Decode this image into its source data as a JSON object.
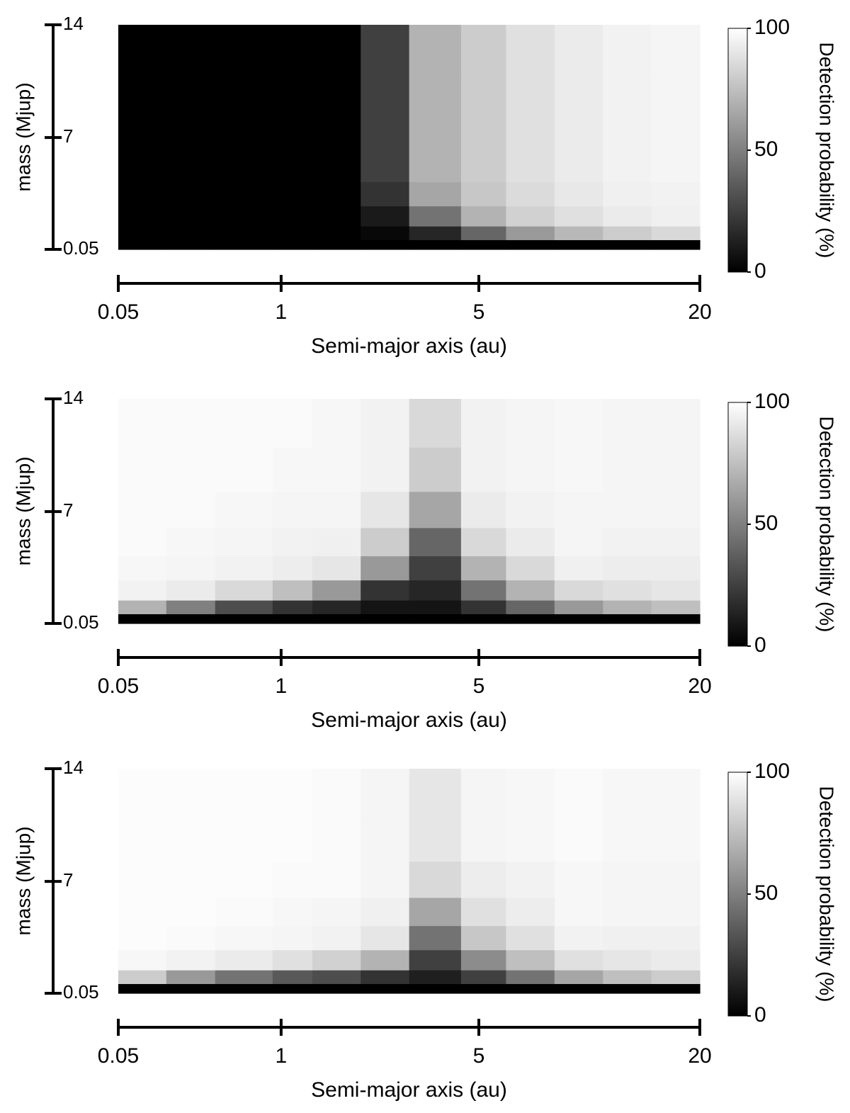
{
  "chart_data": [
    {
      "type": "heatmap",
      "colormap": "gray",
      "x_label": "Semi-major axis (au)",
      "y_label": "mass (Mjup)",
      "colorbar_label": "Detection probability (%)",
      "x": [
        0.19,
        0.47,
        0.76,
        1.14,
        2.12,
        3.1,
        4.08,
        5.2,
        8.49,
        11.78,
        15.07,
        18.36
      ],
      "y": [
        0.3,
        1,
        2,
        3.5,
        5,
        7,
        9.5,
        12.5
      ],
      "xlim": [
        0.05,
        20
      ],
      "xticks": [
        0.05,
        1,
        5,
        20
      ],
      "ylim": [
        0.05,
        14
      ],
      "yticks": [
        0.05,
        7,
        14
      ],
      "clim": [
        0,
        100
      ],
      "cticks": [
        0,
        50,
        100
      ],
      "values": [
        [
          0,
          0,
          0,
          0,
          0,
          0,
          0,
          0,
          0,
          0,
          0,
          0
        ],
        [
          0,
          0,
          0,
          0,
          0,
          3,
          15,
          40,
          60,
          72,
          80,
          85
        ],
        [
          0,
          0,
          0,
          0,
          0,
          10,
          45,
          70,
          82,
          88,
          92,
          94
        ],
        [
          0,
          0,
          0,
          0,
          0,
          20,
          65,
          78,
          86,
          91,
          94,
          95
        ],
        [
          0,
          0,
          0,
          0,
          0,
          25,
          70,
          80,
          88,
          92,
          95,
          96
        ],
        [
          0,
          0,
          0,
          0,
          0,
          25,
          70,
          80,
          88,
          92,
          95,
          96
        ],
        [
          0,
          0,
          0,
          0,
          0,
          25,
          70,
          80,
          88,
          92,
          95,
          96
        ],
        [
          0,
          0,
          0,
          0,
          0,
          25,
          70,
          80,
          88,
          92,
          95,
          96
        ]
      ]
    },
    {
      "type": "heatmap",
      "colormap": "gray",
      "x_label": "Semi-major axis (au)",
      "y_label": "mass (Mjup)",
      "colorbar_label": "Detection probability (%)",
      "x": [
        0.19,
        0.47,
        0.76,
        1.14,
        2.12,
        3.1,
        4.08,
        5.2,
        8.49,
        11.78,
        15.07,
        18.36
      ],
      "y": [
        0.3,
        1,
        2,
        3.5,
        5,
        7,
        9.5,
        12.5
      ],
      "xlim": [
        0.05,
        20
      ],
      "xticks": [
        0.05,
        1,
        5,
        20
      ],
      "ylim": [
        0.05,
        14
      ],
      "yticks": [
        0.05,
        7,
        14
      ],
      "clim": [
        0,
        100
      ],
      "cticks": [
        0,
        50,
        100
      ],
      "values": [
        [
          0,
          0,
          0,
          0,
          0,
          0,
          0,
          0,
          0,
          0,
          0,
          0
        ],
        [
          70,
          50,
          30,
          20,
          15,
          8,
          8,
          20,
          40,
          60,
          70,
          75
        ],
        [
          95,
          92,
          85,
          75,
          60,
          20,
          15,
          45,
          70,
          85,
          88,
          90
        ],
        [
          97,
          96,
          95,
          93,
          90,
          60,
          25,
          70,
          85,
          94,
          93,
          93
        ],
        [
          98,
          97,
          96,
          95,
          94,
          80,
          40,
          85,
          92,
          96,
          95,
          95
        ],
        [
          98,
          98,
          97,
          96,
          96,
          90,
          65,
          92,
          95,
          96,
          96,
          96
        ],
        [
          98,
          98,
          98,
          97,
          97,
          95,
          80,
          95,
          96,
          97,
          96,
          96
        ],
        [
          98,
          98,
          98,
          98,
          97,
          95,
          85,
          95,
          96,
          97,
          96,
          96
        ]
      ]
    },
    {
      "type": "heatmap",
      "colormap": "gray",
      "x_label": "Semi-major axis (au)",
      "y_label": "mass (Mjup)",
      "colorbar_label": "Detection probability (%)",
      "x": [
        0.19,
        0.47,
        0.76,
        1.14,
        2.12,
        3.1,
        4.08,
        5.2,
        8.49,
        11.78,
        15.07,
        18.36
      ],
      "y": [
        0.3,
        1,
        2,
        3.5,
        5,
        7,
        9.5,
        12.5
      ],
      "xlim": [
        0.05,
        20
      ],
      "xticks": [
        0.05,
        1,
        5,
        20
      ],
      "ylim": [
        0.05,
        14
      ],
      "yticks": [
        0.05,
        7,
        14
      ],
      "clim": [
        0,
        100
      ],
      "cticks": [
        0,
        50,
        100
      ],
      "values": [
        [
          0,
          0,
          0,
          0,
          0,
          0,
          0,
          0,
          0,
          0,
          0,
          0
        ],
        [
          80,
          60,
          45,
          35,
          30,
          20,
          12,
          25,
          45,
          65,
          75,
          80
        ],
        [
          97,
          95,
          92,
          88,
          82,
          70,
          25,
          55,
          75,
          88,
          90,
          92
        ],
        [
          99,
          98,
          97,
          96,
          95,
          90,
          45,
          78,
          88,
          95,
          94,
          94
        ],
        [
          99,
          99,
          98,
          97,
          96,
          94,
          65,
          88,
          93,
          97,
          96,
          96
        ],
        [
          99,
          99,
          99,
          98,
          98,
          96,
          85,
          93,
          95,
          97,
          96,
          96
        ],
        [
          99,
          99,
          99,
          99,
          98,
          96,
          90,
          96,
          97,
          98,
          97,
          97
        ],
        [
          99,
          99,
          99,
          99,
          98,
          96,
          90,
          96,
          97,
          98,
          97,
          97
        ]
      ]
    }
  ]
}
